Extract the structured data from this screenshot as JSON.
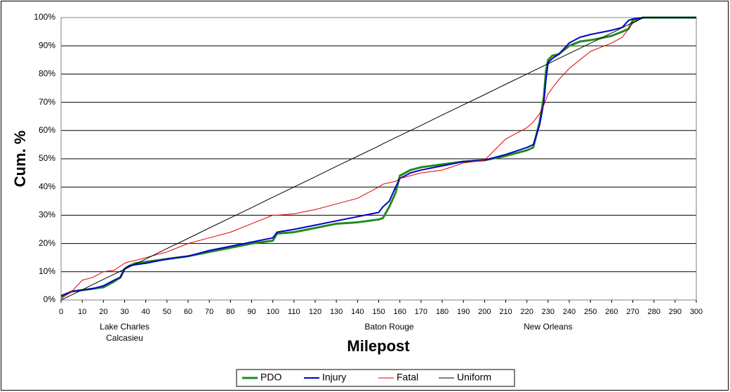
{
  "chart_data": {
    "type": "line",
    "x_label": "Milepost",
    "y_label": "Cum. %",
    "x": [
      0,
      5,
      10,
      15,
      20,
      25,
      28,
      30,
      32,
      35,
      40,
      50,
      60,
      70,
      80,
      90,
      100,
      102,
      110,
      120,
      130,
      140,
      150,
      152,
      155,
      158,
      160,
      165,
      170,
      180,
      190,
      200,
      210,
      220,
      223,
      226,
      228,
      229,
      230,
      232,
      235,
      240,
      245,
      250,
      260,
      265,
      268,
      270,
      275,
      280,
      300
    ],
    "series": [
      {
        "name": "PDO",
        "color": "#1e8c1e",
        "width": 3,
        "values": [
          1,
          3,
          3.5,
          4,
          4.5,
          6.5,
          8,
          11,
          12,
          13,
          13.5,
          14.5,
          15.5,
          17,
          18.5,
          20,
          21,
          23.5,
          24,
          25.5,
          27,
          27.5,
          28.5,
          29,
          33,
          38,
          44,
          46,
          47,
          48,
          49,
          49.5,
          51,
          53,
          54,
          63,
          72,
          81,
          85,
          86.5,
          87,
          90,
          91.5,
          92,
          93.5,
          95,
          96,
          99,
          100,
          100,
          100
        ]
      },
      {
        "name": "Injury",
        "color": "#0000cc",
        "width": 2,
        "values": [
          1.5,
          3,
          3.5,
          4,
          5,
          7,
          8,
          11,
          12,
          12.5,
          13,
          14.5,
          15.5,
          17.5,
          19,
          20.5,
          22,
          24,
          25,
          26.5,
          28,
          29.5,
          31,
          33,
          35,
          40,
          43,
          45,
          46,
          47.5,
          49,
          49.5,
          51.5,
          54,
          55,
          62,
          70,
          78,
          84,
          85.5,
          87,
          91,
          93,
          94,
          95.5,
          96.5,
          99,
          99.5,
          100,
          100,
          100
        ]
      },
      {
        "name": "Fatal",
        "color": "#e00000",
        "width": 1,
        "values": [
          0.5,
          3,
          7,
          8,
          10,
          10.5,
          12,
          13,
          13.5,
          14,
          15,
          17,
          20,
          22,
          24,
          27,
          30,
          30,
          30.5,
          32,
          34,
          36,
          40,
          41,
          41.5,
          42,
          43,
          44,
          45,
          46,
          48.5,
          49.5,
          57,
          61,
          63,
          66,
          69,
          71,
          73,
          75,
          78,
          82,
          85,
          88,
          91,
          93,
          96,
          98,
          100,
          100,
          100
        ]
      },
      {
        "name": "Uniform",
        "color": "#000000",
        "width": 1,
        "values": [
          0,
          1.8,
          3.6,
          5.5,
          7.3,
          9.1,
          10.2,
          10.9,
          11.6,
          12.7,
          14.5,
          18.2,
          21.8,
          25.5,
          29.1,
          32.7,
          36.4,
          37.1,
          40,
          43.6,
          47.3,
          50.9,
          54.5,
          55.3,
          56.4,
          57.5,
          58.2,
          60,
          61.8,
          65.5,
          69.1,
          72.7,
          76.4,
          80,
          81.1,
          82.2,
          82.9,
          83.3,
          83.6,
          84.4,
          85.5,
          87.3,
          89.1,
          90.9,
          94.5,
          96.4,
          97.5,
          98.2,
          100,
          100,
          100
        ]
      }
    ],
    "xlim": [
      0,
      300
    ],
    "ylim": [
      0,
      100
    ],
    "xticks": [
      0,
      10,
      20,
      30,
      40,
      50,
      60,
      70,
      80,
      90,
      100,
      110,
      120,
      130,
      140,
      150,
      160,
      170,
      180,
      190,
      200,
      210,
      220,
      230,
      240,
      250,
      260,
      270,
      280,
      290,
      300
    ],
    "yticks": [
      {
        "value": 0,
        "label": "0%"
      },
      {
        "value": 10,
        "label": "10%"
      },
      {
        "value": 20,
        "label": "20%"
      },
      {
        "value": 30,
        "label": "30%"
      },
      {
        "value": 40,
        "label": "40%"
      },
      {
        "value": 50,
        "label": "50%"
      },
      {
        "value": 60,
        "label": "60%"
      },
      {
        "value": 70,
        "label": "70%"
      },
      {
        "value": 80,
        "label": "80%"
      },
      {
        "value": 90,
        "label": "90%"
      },
      {
        "value": 100,
        "label": "100%"
      }
    ],
    "grid": true,
    "legend": "bottom",
    "annotations": [
      {
        "text": "Lake Charles",
        "x": 30
      },
      {
        "text": "Calcasieu",
        "x": 30
      },
      {
        "text": "Baton Rouge",
        "x": 155
      },
      {
        "text": "New Orleans",
        "x": 230
      }
    ]
  }
}
